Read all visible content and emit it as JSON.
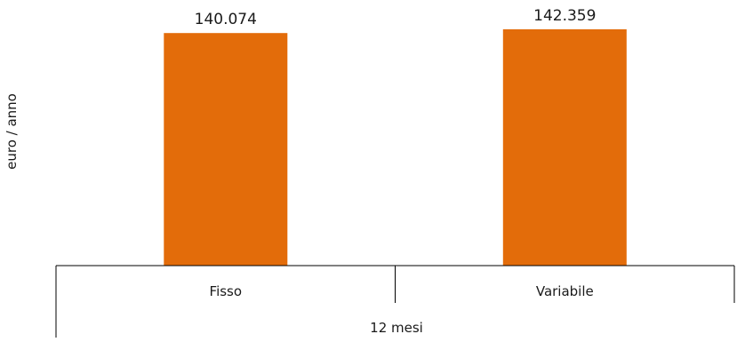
{
  "chart_data": {
    "type": "bar",
    "categories": [
      "Fisso",
      "Variabile"
    ],
    "values": [
      140074,
      142359
    ],
    "value_labels": [
      "140.074",
      "142.359"
    ],
    "group_label": "12 mesi",
    "xlabel": "",
    "ylabel": "euro / anno",
    "ylim": [
      0,
      160000
    ],
    "grid": false,
    "legend": "none"
  },
  "colors": {
    "bar": "#e36c0a",
    "axis": "#000000",
    "text": "#1a1a1a"
  }
}
